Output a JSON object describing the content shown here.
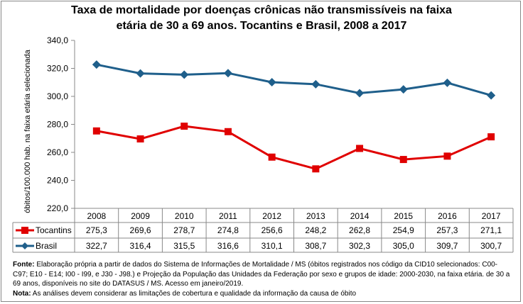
{
  "chart_data": {
    "type": "line",
    "title_line1": "Taxa de mortalidade por doenças crônicas não transmissíveis na faixa",
    "title_line2": "etária de 30 a 69 anos. Tocantins e Brasil, 2008 a 2017",
    "ylabel": "óbitos/100.000 hab. na faixa etária selecionada",
    "ylim": [
      220,
      340
    ],
    "yticks": [
      "220,0",
      "240,0",
      "260,0",
      "280,0",
      "300,0",
      "320,0",
      "340,0"
    ],
    "ytick_values": [
      220,
      240,
      260,
      280,
      300,
      320,
      340
    ],
    "grid": false,
    "categories": [
      "2008",
      "2009",
      "2010",
      "2011",
      "2012",
      "2013",
      "2014",
      "2015",
      "2016",
      "2017"
    ],
    "series": [
      {
        "name": "Tocantins",
        "color": "#e00000",
        "marker": "square",
        "values": [
          275.3,
          269.6,
          278.7,
          274.8,
          256.6,
          248.2,
          262.8,
          254.9,
          257.3,
          271.1
        ],
        "labels": [
          "275,3",
          "269,6",
          "278,7",
          "274,8",
          "256,6",
          "248,2",
          "262,8",
          "254,9",
          "257,3",
          "271,1"
        ]
      },
      {
        "name": "Brasil",
        "color": "#1f5f8b",
        "marker": "diamond",
        "values": [
          322.7,
          316.4,
          315.5,
          316.6,
          310.1,
          308.7,
          302.3,
          305.0,
          309.7,
          300.7
        ],
        "labels": [
          "322,7",
          "316,4",
          "315,5",
          "316,6",
          "310,1",
          "308,7",
          "302,3",
          "305,0",
          "309,7",
          "300,7"
        ]
      }
    ],
    "legend": "data-table"
  },
  "notes": {
    "fonte_label": "Fonte:",
    "fonte_text": " Elaboração própria a partir de dados do Sistema de Informações de Mortalidade / MS (óbitos registrados nos código da CID10 selecionados: C00-C97; E10 - E14; I00 - I99, e J30 - J98.) e Projeção da População das Unidades da Federação por sexo e grupos de idade: 2000-2030, na faixa etária. de 30 a 69 anos, disponíveis no site do DATASUS / MS.  Acesso em janeiro/2019.",
    "nota_label": "Nota:",
    "nota_text": "  As análises devem considerar as limitações de cobertura e qualidade da informação da causa de óbito"
  }
}
